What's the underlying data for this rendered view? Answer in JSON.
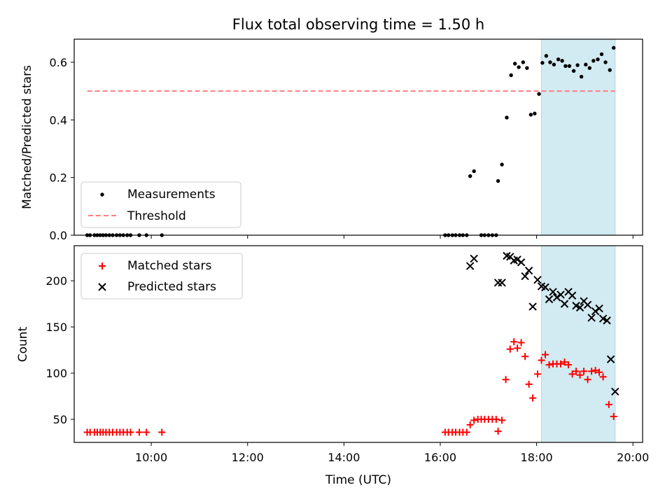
{
  "title": "Flux total observing time = 1.50 h",
  "colors": {
    "measurement": "#000000",
    "threshold": "#ff7f7f",
    "matched": "#ff0000",
    "predicted": "#000000",
    "span": "#add8e6"
  },
  "chart_data": [
    {
      "type": "scatter",
      "ylabel": "Matched/Predicted stars",
      "xlim": [
        8.4,
        20.2
      ],
      "ylim": [
        0,
        0.68
      ],
      "yticks": [
        0.0,
        0.2,
        0.4,
        0.6
      ],
      "ytick_labels": [
        "0.0",
        "0.2",
        "0.4",
        "0.6"
      ],
      "xticks": [
        10,
        12,
        14,
        16,
        18,
        20
      ],
      "shaded_x": [
        18.1,
        19.63
      ],
      "threshold": {
        "y": 0.5,
        "x": [
          8.67,
          19.63
        ]
      },
      "legend": {
        "position": "lower-left",
        "entries": [
          "Measurements",
          "Threshold"
        ]
      },
      "series": [
        {
          "name": "Measurements",
          "points": [
            [
              8.67,
              0
            ],
            [
              8.73,
              0
            ],
            [
              8.82,
              0
            ],
            [
              8.88,
              0
            ],
            [
              8.94,
              0
            ],
            [
              9.0,
              0
            ],
            [
              9.06,
              0
            ],
            [
              9.13,
              0
            ],
            [
              9.2,
              0
            ],
            [
              9.28,
              0
            ],
            [
              9.35,
              0
            ],
            [
              9.42,
              0
            ],
            [
              9.5,
              0
            ],
            [
              9.57,
              0
            ],
            [
              9.75,
              0
            ],
            [
              9.9,
              0
            ],
            [
              10.22,
              0
            ],
            [
              16.1,
              0
            ],
            [
              16.17,
              0
            ],
            [
              16.25,
              0
            ],
            [
              16.32,
              0
            ],
            [
              16.4,
              0
            ],
            [
              16.47,
              0
            ],
            [
              16.55,
              0
            ],
            [
              16.62,
              0.205
            ],
            [
              16.7,
              0.222
            ],
            [
              16.85,
              0
            ],
            [
              16.92,
              0
            ],
            [
              17.0,
              0
            ],
            [
              17.08,
              0
            ],
            [
              17.16,
              0
            ],
            [
              17.2,
              0.188
            ],
            [
              17.28,
              0.245
            ],
            [
              17.38,
              0.408
            ],
            [
              17.47,
              0.555
            ],
            [
              17.55,
              0.595
            ],
            [
              17.63,
              0.583
            ],
            [
              17.72,
              0.6
            ],
            [
              17.8,
              0.58
            ],
            [
              17.88,
              0.418
            ],
            [
              17.96,
              0.422
            ],
            [
              18.05,
              0.49
            ],
            [
              18.12,
              0.598
            ],
            [
              18.2,
              0.622
            ],
            [
              18.28,
              0.6
            ],
            [
              18.36,
              0.592
            ],
            [
              18.45,
              0.61
            ],
            [
              18.53,
              0.605
            ],
            [
              18.6,
              0.587
            ],
            [
              18.68,
              0.587
            ],
            [
              18.77,
              0.57
            ],
            [
              18.85,
              0.59
            ],
            [
              18.93,
              0.55
            ],
            [
              19.02,
              0.592
            ],
            [
              19.1,
              0.58
            ],
            [
              19.18,
              0.605
            ],
            [
              19.27,
              0.61
            ],
            [
              19.35,
              0.628
            ],
            [
              19.43,
              0.6
            ],
            [
              19.52,
              0.573
            ],
            [
              19.6,
              0.65
            ]
          ]
        }
      ]
    },
    {
      "type": "scatter",
      "xlabel": "Time (UTC)",
      "ylabel": "Count",
      "xlim": [
        8.4,
        20.2
      ],
      "ylim": [
        25,
        238
      ],
      "yticks": [
        50,
        100,
        150,
        200
      ],
      "ytick_labels": [
        "50",
        "100",
        "150",
        "200"
      ],
      "xticks": [
        10,
        12,
        14,
        16,
        18,
        20
      ],
      "xtick_labels": [
        "10:00",
        "12:00",
        "14:00",
        "16:00",
        "18:00",
        "20:00"
      ],
      "shaded_x": [
        18.1,
        19.63
      ],
      "legend": {
        "position": "upper-left",
        "entries": [
          "Matched stars",
          "Predicted stars"
        ]
      },
      "series": [
        {
          "name": "Matched stars",
          "points": [
            [
              8.67,
              36
            ],
            [
              8.73,
              36
            ],
            [
              8.82,
              36
            ],
            [
              8.88,
              36
            ],
            [
              8.94,
              36
            ],
            [
              9.0,
              36
            ],
            [
              9.06,
              36
            ],
            [
              9.13,
              36
            ],
            [
              9.2,
              36
            ],
            [
              9.28,
              36
            ],
            [
              9.35,
              36
            ],
            [
              9.42,
              36
            ],
            [
              9.5,
              36
            ],
            [
              9.57,
              36
            ],
            [
              9.75,
              36
            ],
            [
              9.9,
              36
            ],
            [
              10.22,
              36
            ],
            [
              16.1,
              36
            ],
            [
              16.17,
              36
            ],
            [
              16.25,
              36
            ],
            [
              16.32,
              36
            ],
            [
              16.4,
              36
            ],
            [
              16.47,
              36
            ],
            [
              16.55,
              36
            ],
            [
              16.62,
              44
            ],
            [
              16.7,
              49
            ],
            [
              16.78,
              50
            ],
            [
              16.85,
              50
            ],
            [
              16.92,
              50
            ],
            [
              17.0,
              50
            ],
            [
              17.08,
              50
            ],
            [
              17.16,
              50
            ],
            [
              17.2,
              37
            ],
            [
              17.28,
              49
            ],
            [
              17.36,
              93
            ],
            [
              17.45,
              126
            ],
            [
              17.53,
              134
            ],
            [
              17.6,
              127
            ],
            [
              17.68,
              133
            ],
            [
              17.76,
              118
            ],
            [
              17.84,
              88
            ],
            [
              17.92,
              73
            ],
            [
              18.02,
              99
            ],
            [
              18.1,
              114
            ],
            [
              18.18,
              120
            ],
            [
              18.26,
              109
            ],
            [
              18.34,
              110
            ],
            [
              18.42,
              110
            ],
            [
              18.5,
              110
            ],
            [
              18.58,
              112
            ],
            [
              18.66,
              109
            ],
            [
              18.74,
              99
            ],
            [
              18.82,
              102
            ],
            [
              18.9,
              98
            ],
            [
              18.98,
              102
            ],
            [
              19.06,
              93
            ],
            [
              19.14,
              102
            ],
            [
              19.22,
              103
            ],
            [
              19.3,
              101
            ],
            [
              19.38,
              96
            ],
            [
              19.5,
              66
            ],
            [
              19.6,
              53
            ]
          ]
        },
        {
          "name": "Predicted stars",
          "points": [
            [
              16.62,
              216
            ],
            [
              16.7,
              224
            ],
            [
              17.2,
              198
            ],
            [
              17.28,
              198
            ],
            [
              17.38,
              227
            ],
            [
              17.45,
              226
            ],
            [
              17.53,
              222
            ],
            [
              17.6,
              223
            ],
            [
              17.68,
              220
            ],
            [
              17.76,
              205
            ],
            [
              17.84,
              211
            ],
            [
              17.92,
              172
            ],
            [
              18.02,
              201
            ],
            [
              18.1,
              194
            ],
            [
              18.18,
              193
            ],
            [
              18.26,
              180
            ],
            [
              18.34,
              188
            ],
            [
              18.42,
              182
            ],
            [
              18.5,
              185
            ],
            [
              18.58,
              175
            ],
            [
              18.66,
              188
            ],
            [
              18.74,
              184
            ],
            [
              18.82,
              173
            ],
            [
              18.9,
              171
            ],
            [
              18.98,
              178
            ],
            [
              19.06,
              174
            ],
            [
              19.14,
              160
            ],
            [
              19.22,
              167
            ],
            [
              19.3,
              170
            ],
            [
              19.38,
              159
            ],
            [
              19.46,
              157
            ],
            [
              19.54,
              115
            ],
            [
              19.63,
              80
            ]
          ]
        }
      ]
    }
  ]
}
